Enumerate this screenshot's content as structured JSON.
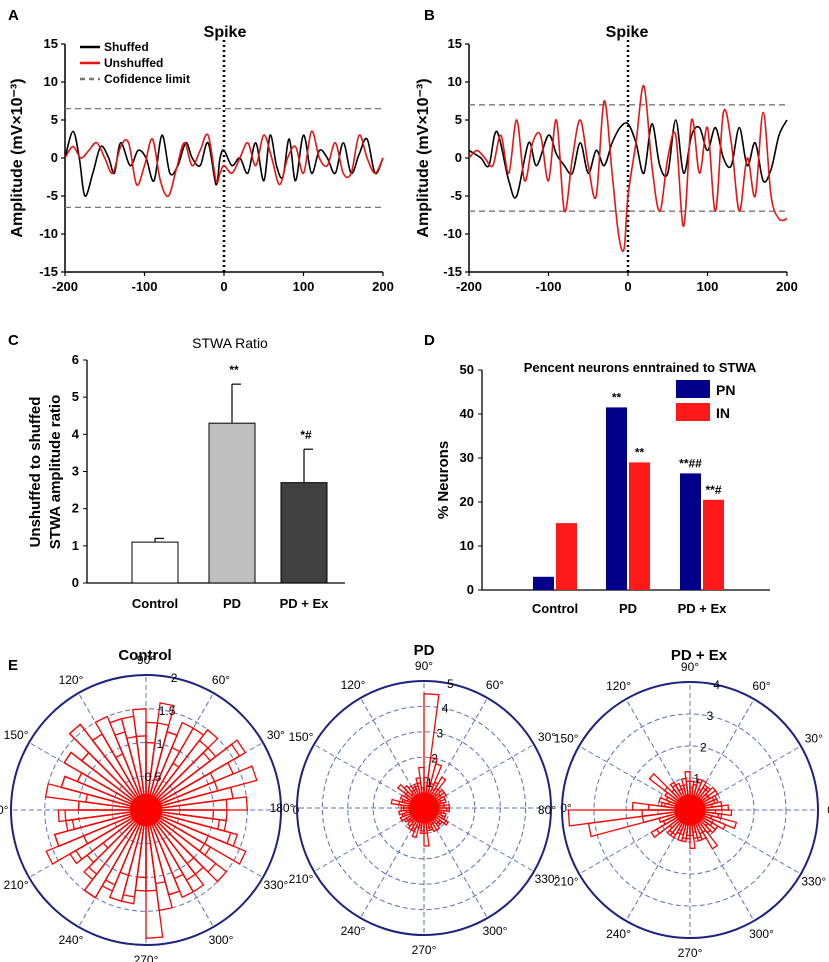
{
  "panels": {
    "A": {
      "letter": "A",
      "title": "Spike",
      "ylabel": "Amplitude (mV×10⁻³)",
      "legend": [
        "Shuffed",
        "Unshuffed",
        "Cofidence limit"
      ],
      "yticks": [
        "15",
        "10",
        "5",
        "0",
        "-5",
        "-10",
        "-15"
      ],
      "xticks": [
        "-200",
        "-100",
        "0",
        "100",
        "200"
      ]
    },
    "B": {
      "letter": "B",
      "title": "Spike",
      "ylabel": "Amplitude (mV×10⁻³)",
      "yticks": [
        "15",
        "10",
        "5",
        "0",
        "-5",
        "-10",
        "-15"
      ],
      "xticks": [
        "-200",
        "-100",
        "0",
        "100",
        "200"
      ]
    },
    "C": {
      "letter": "C",
      "title": "STWA Ratio",
      "ylabel1": "Unshuffed to shuffed",
      "ylabel2": "STWA amplitude ratio",
      "yticks": [
        "6",
        "5",
        "4",
        "3",
        "2",
        "1",
        "0"
      ]
    },
    "D": {
      "letter": "D",
      "title": "Pencent neurons enntrained to STWA",
      "ylabel": "% Neurons",
      "yticks": [
        "50",
        "40",
        "30",
        "20",
        "10",
        "0"
      ]
    },
    "E": {
      "letter": "E",
      "titles": [
        "Control",
        "PD",
        "PD + Ex"
      ]
    }
  },
  "chart_data": [
    {
      "id": "A",
      "type": "line",
      "title": "Spike",
      "xlabel": "",
      "ylabel": "Amplitude (mV×10⁻³)",
      "xlim": [
        -200,
        200
      ],
      "ylim": [
        -15,
        15
      ],
      "confidence_limits": [
        6.5,
        -6.5
      ],
      "series": [
        {
          "name": "Shuffed",
          "color": "#000000",
          "x": [
            -200,
            -190,
            -182,
            -175,
            -165,
            -155,
            -145,
            -138,
            -130,
            -118,
            -108,
            -98,
            -88,
            -78,
            -68,
            -58,
            -48,
            -40,
            -30,
            -20,
            -10,
            -5,
            0,
            10,
            20,
            30,
            40,
            50,
            58,
            66,
            74,
            82,
            90,
            100,
            110,
            120,
            130,
            140,
            150,
            160,
            170,
            180,
            190,
            200
          ],
          "y": [
            0,
            3.5,
            0,
            -5,
            -2,
            1.5,
            0,
            -2,
            2,
            -1,
            1,
            0,
            -3,
            3,
            -2,
            -1,
            2,
            0,
            -1,
            2,
            -3.5,
            0,
            1,
            -1,
            0,
            -2,
            2,
            -3,
            3,
            -1,
            -2.5,
            2.5,
            -3,
            3,
            -2,
            1,
            0,
            -2,
            2,
            -2,
            0.5,
            2.5,
            -2,
            0
          ]
        },
        {
          "name": "Unshuffed",
          "color": "#ee1111",
          "x": [
            -200,
            -190,
            -180,
            -170,
            -160,
            -150,
            -140,
            -130,
            -120,
            -110,
            -100,
            -90,
            -80,
            -70,
            -60,
            -50,
            -40,
            -30,
            -20,
            -10,
            -5,
            0,
            10,
            20,
            30,
            40,
            50,
            60,
            70,
            80,
            90,
            100,
            110,
            120,
            130,
            140,
            150,
            160,
            170,
            180,
            190,
            200
          ],
          "y": [
            0,
            1.5,
            0,
            1,
            2,
            0,
            -2,
            1.5,
            2,
            -3.5,
            -1,
            2.5,
            -3,
            -5,
            -1.5,
            2,
            -1,
            1,
            3,
            -3,
            -2,
            -1,
            -2,
            0,
            2,
            -1,
            3,
            0,
            -3.5,
            0,
            1.5,
            -2,
            3.5,
            0,
            -1,
            2,
            -2,
            -2,
            3,
            0,
            -2,
            0
          ]
        },
        {
          "name": "Cofidence limit",
          "color": "#777777",
          "style": "dashed",
          "values": [
            6.5,
            -6.5
          ]
        }
      ],
      "vertical_marker": {
        "x": 0,
        "label": "Spike"
      }
    },
    {
      "id": "B",
      "type": "line",
      "title": "Spike",
      "xlabel": "",
      "ylabel": "Amplitude (mV×10⁻³)",
      "xlim": [
        -200,
        200
      ],
      "ylim": [
        -15,
        15
      ],
      "confidence_limits": [
        7,
        -7
      ],
      "series": [
        {
          "name": "Shuffed",
          "color": "#000000",
          "x": [
            -200,
            -185,
            -175,
            -165,
            -150,
            -140,
            -125,
            -115,
            -100,
            -90,
            -80,
            -70,
            -60,
            -50,
            -40,
            -30,
            -20,
            -10,
            0,
            10,
            20,
            30,
            40,
            50,
            60,
            70,
            80,
            90,
            100,
            110,
            120,
            130,
            140,
            150,
            160,
            170,
            180,
            190,
            200
          ],
          "y": [
            1,
            0,
            -1,
            3.5,
            -3,
            -5,
            2,
            -1,
            3,
            0.5,
            -1,
            -2,
            2,
            -2,
            1,
            -1,
            2,
            4,
            4.5,
            2,
            -2,
            4.5,
            -1,
            -2,
            5,
            -2,
            3,
            4,
            1,
            4,
            0,
            -1,
            4,
            -1,
            2,
            -3,
            -1.5,
            3,
            5
          ]
        },
        {
          "name": "Unshuffed",
          "color": "#ee1111",
          "x": [
            -200,
            -190,
            -180,
            -170,
            -160,
            -150,
            -140,
            -130,
            -120,
            -110,
            -100,
            -90,
            -80,
            -70,
            -60,
            -50,
            -40,
            -30,
            -20,
            -12,
            -5,
            0,
            10,
            20,
            30,
            40,
            50,
            60,
            70,
            80,
            90,
            100,
            110,
            120,
            130,
            140,
            150,
            160,
            170,
            180,
            190,
            200
          ],
          "y": [
            0,
            1,
            0,
            -1,
            3,
            -2,
            5,
            -3,
            2,
            3,
            -3,
            5,
            -7,
            0,
            5,
            -1,
            -5,
            7.5,
            -2,
            -10,
            -12,
            -5,
            2,
            9.5,
            -1,
            -7,
            0,
            3,
            -9,
            5,
            -2,
            4,
            -7,
            6,
            2,
            -7,
            0,
            -5,
            6,
            -5,
            -8,
            -8
          ]
        },
        {
          "name": "Cofidence limit",
          "color": "#777777",
          "style": "dashed",
          "values": [
            7,
            -7
          ]
        }
      ],
      "vertical_marker": {
        "x": 0,
        "label": "Spike"
      }
    },
    {
      "id": "C",
      "type": "bar",
      "title": "STWA Ratio",
      "xlabel": "",
      "ylabel": "Unshuffed to shuffed STWA amplitude ratio",
      "ylim": [
        0,
        6
      ],
      "categories": [
        "Control",
        "PD",
        "PD + Ex"
      ],
      "values": [
        1.1,
        4.3,
        2.7
      ],
      "errors": [
        0.1,
        1.05,
        0.9
      ],
      "colors": [
        "#ffffff",
        "#bfbfbf",
        "#404040"
      ],
      "annotations": [
        "",
        "**",
        "*#"
      ]
    },
    {
      "id": "D",
      "type": "bar",
      "title": "Pencent neurons enntrained to STWA",
      "xlabel": "",
      "ylabel": "% Neurons",
      "ylim": [
        0,
        50
      ],
      "categories": [
        "Control",
        "PD",
        "PD + Ex"
      ],
      "legend": "top-right",
      "series": [
        {
          "name": "PN",
          "color": "#00008b",
          "values": [
            3,
            41.5,
            26.5
          ],
          "annotations": [
            "",
            "**",
            "**##"
          ]
        },
        {
          "name": "IN",
          "color": "#ff1a1a",
          "values": [
            15.2,
            29,
            20.5
          ],
          "annotations": [
            "",
            "**",
            "**#"
          ]
        }
      ]
    },
    {
      "id": "E1",
      "type": "polar-histogram",
      "title": "Control",
      "rmax": 2,
      "ring_labels": [
        "0.5",
        "1",
        "1.5",
        "2"
      ],
      "angle_labels": [
        "0",
        "30°",
        "60°",
        "90°",
        "120°",
        "150°",
        "180°",
        "210°",
        "240°",
        "270°",
        "300°",
        "330°"
      ],
      "bin_width_deg": 7.5,
      "values": [
        1.2,
        1.3,
        1.7,
        1.1,
        1.6,
        1.3,
        1.5,
        0.8,
        1.4,
        1.2,
        1.3,
        1.0,
        1.5,
        1.1,
        1.4,
        0.9,
        1.3,
        1.6,
        1.2,
        1.4,
        1.1,
        1.3,
        0.9,
        1.0,
        1.2,
        1.1,
        1.4,
        1.0,
        1.3,
        0.8,
        1.2,
        1.5,
        1.3,
        1.0,
        1.4,
        1.2,
        1.9,
        1.5,
        1.3,
        1.1,
        1.4,
        1.2,
        1.5,
        1.0,
        1.6,
        1.3,
        1.2,
        1.0,
        1.5,
        1.3,
        1.1,
        1.4,
        1.7,
        1.2,
        1.3,
        1.4,
        1.0,
        1.2,
        1.6,
        1.3,
        1.1,
        1.4,
        1.2,
        1.5,
        1.3,
        1.6,
        1.2,
        1.4,
        1.1,
        1.3,
        1.5,
        1.0,
        1.3,
        1.2,
        1.4,
        1.6,
        1.2,
        1.1,
        1.3,
        1.5,
        1.2,
        1.4,
        1.3,
        1.0,
        1.2,
        1.1,
        1.3,
        1.4,
        1.2,
        1.0,
        1.3,
        1.1,
        1.0,
        1.4,
        1.1,
        1.2
      ]
    },
    {
      "id": "E2",
      "type": "polar-histogram",
      "title": "PD",
      "rmax": 5,
      "ring_labels": [
        "1",
        "2",
        "3",
        "4",
        "5"
      ],
      "angle_labels": [
        "0°",
        "30°",
        "60°",
        "90°",
        "120°",
        "150°",
        "180°",
        "210°",
        "240°",
        "270°",
        "300°",
        "330°"
      ],
      "bin_width_deg": 7.5,
      "values": [
        0.8,
        0.6,
        0.9,
        0.7,
        1.0,
        0.8,
        0.9,
        1.4,
        1.1,
        1.8,
        2.0,
        4.5,
        1.6,
        1.2,
        1.0,
        0.9,
        0.8,
        1.1,
        1.3,
        0.9,
        0.7,
        0.8,
        1.0,
        0.9,
        0.8,
        0.7,
        0.9,
        1.0,
        0.8,
        0.7,
        0.9,
        0.8,
        1.0,
        1.2,
        0.8,
        1.0,
        1.5,
        0.9,
        0.8,
        1.0,
        0.7,
        0.9,
        0.8,
        1.0,
        0.9,
        0.7,
        0.8,
        0.9,
        1.0,
        0.8,
        0.7,
        0.9,
        0.8,
        1.0,
        0.7,
        0.9,
        0.8,
        1.0,
        0.9,
        1.2,
        0.8,
        1.0,
        0.9,
        0.8,
        1.0,
        0.7,
        0.9,
        0.8,
        1.0,
        0.9,
        1.3,
        0.8,
        0.9,
        1.0,
        0.8,
        1.0,
        0.9,
        0.8,
        0.7,
        1.0,
        0.9,
        0.8,
        0.7,
        0.9,
        1.0,
        0.8,
        0.9,
        0.7,
        1.0,
        0.8,
        0.9,
        1.1,
        0.8,
        0.9,
        0.7,
        1.0
      ]
    },
    {
      "id": "E3",
      "type": "polar-histogram",
      "title": "PD + Ex",
      "rmax": 4,
      "ring_labels": [
        "1",
        "2",
        "3",
        "4"
      ],
      "angle_labels": [
        "0°",
        "30°",
        "60°",
        "90°",
        "120°",
        "150°",
        "80°",
        "210°",
        "240°",
        "270°",
        "300°",
        "330°"
      ],
      "bin_width_deg": 7.5,
      "values": [
        1.2,
        1.0,
        0.8,
        0.9,
        0.7,
        1.0,
        0.8,
        0.9,
        0.7,
        1.0,
        0.8,
        0.9,
        1.2,
        0.8,
        0.7,
        0.9,
        1.0,
        0.8,
        1.6,
        0.9,
        0.8,
        1.0,
        0.9,
        1.3,
        1.5,
        3.2,
        1.0,
        0.9,
        1.4,
        0.8,
        1.0,
        0.9,
        0.7,
        0.8,
        1.0,
        0.9,
        0.8,
        0.7,
        0.9,
        1.0,
        0.8,
        0.9,
        0.7,
        1.0,
        0.8,
        0.7,
        0.9,
        0.8,
        1.0,
        0.7,
        0.9,
        0.8,
        1.0,
        0.7,
        0.9,
        0.8,
        1.0,
        0.9,
        0.8,
        0.7,
        0.9,
        1.0,
        0.8,
        0.7,
        0.9,
        0.8,
        1.0,
        0.9,
        0.8,
        0.7,
        0.8,
        1.8,
        3.8,
        1.5,
        1.0,
        0.9,
        1.2,
        0.8,
        0.9,
        1.0,
        0.8,
        1.0,
        0.9,
        0.8,
        1.2,
        0.9,
        1.0,
        0.8,
        1.4,
        0.9,
        1.0,
        0.8,
        1.2,
        1.5,
        1.0,
        1.3
      ]
    }
  ]
}
